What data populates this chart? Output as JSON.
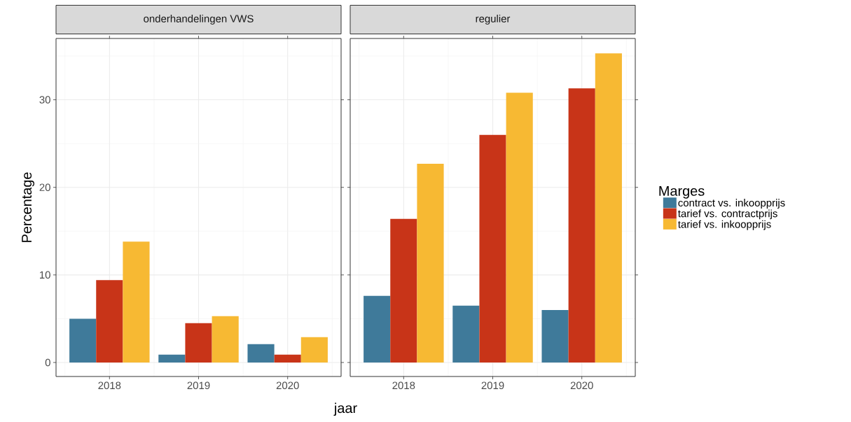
{
  "chart_data": [
    {
      "type": "bar",
      "title": "onderhandelingen VWS",
      "xlabel": "jaar",
      "ylabel": "Percentage",
      "categories": [
        "2018",
        "2019",
        "2020"
      ],
      "series": [
        {
          "color": "#3f7a9a",
          "values": [
            5.0,
            0.9,
            2.1
          ]
        },
        {
          "color": "#c83418",
          "values": [
            9.4,
            4.5,
            0.9
          ]
        },
        {
          "color": "#f7b933",
          "values": [
            13.8,
            5.3,
            2.9
          ]
        }
      ],
      "ylim": [
        -1.6,
        37.0
      ],
      "yticks": [
        0,
        10,
        20,
        30
      ],
      "grid": true,
      "legend": false
    },
    {
      "type": "bar",
      "title": "regulier",
      "legend_title": "Marges",
      "categories": [
        "2018",
        "2019",
        "2020"
      ],
      "series": [
        {
          "name": "contract vs. inkoopprijs",
          "color": "#3f7a9a",
          "values": [
            7.6,
            6.5,
            6.0
          ]
        },
        {
          "name": "tarief vs. contractprijs",
          "color": "#c83418",
          "values": [
            16.4,
            26.0,
            31.3
          ]
        },
        {
          "name": "tarief vs. inkoopprijs",
          "color": "#f7b933",
          "values": [
            22.7,
            30.8,
            35.3
          ]
        }
      ],
      "ylim": [
        -1.6,
        37.0
      ],
      "yticks": [
        0,
        10,
        20,
        30
      ],
      "grid": true,
      "legend": "right",
      "tick_labels": "x"
    }
  ]
}
